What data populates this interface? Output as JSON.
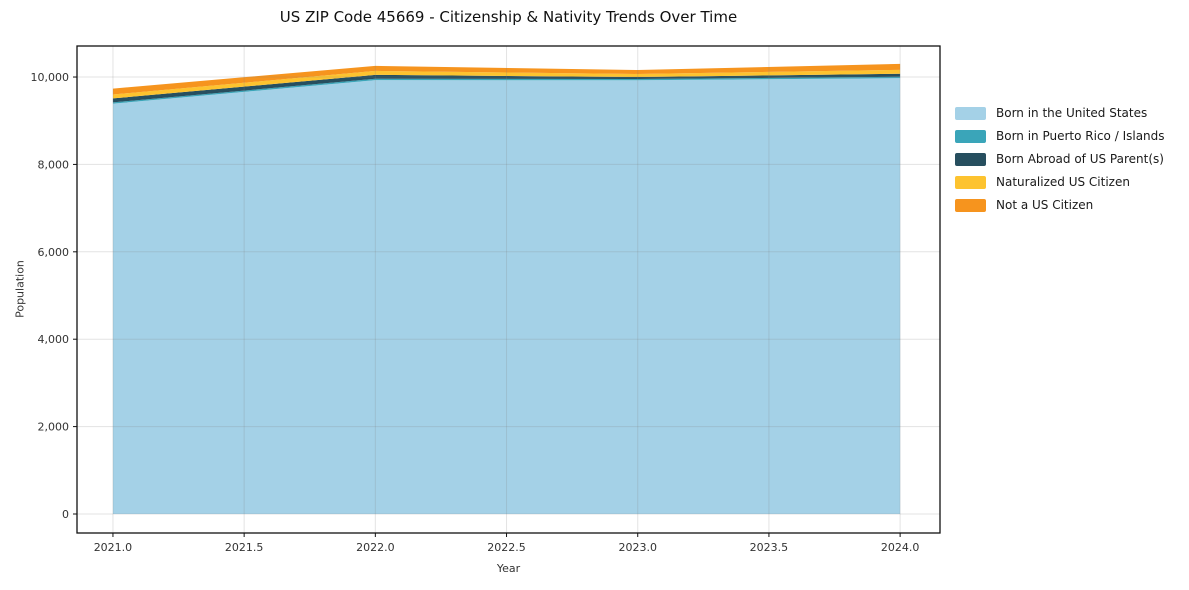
{
  "chart_data": {
    "type": "area",
    "stacked": true,
    "title": "US ZIP Code 45669 - Citizenship & Nativity Trends Over Time",
    "xlabel": "Year",
    "ylabel": "Population",
    "x": [
      2021,
      2022,
      2023,
      2024
    ],
    "series": [
      {
        "name": "Born in the United States",
        "color": "#a4d1e7",
        "values": [
          9390,
          9930,
          9925,
          9975
        ]
      },
      {
        "name": "Born in Puerto Rico / Islands",
        "color": "#3aa5b9",
        "values": [
          30,
          30,
          30,
          30
        ]
      },
      {
        "name": "Born Abroad of US Parent(s)",
        "color": "#274f5f",
        "values": [
          90,
          90,
          45,
          70
        ]
      },
      {
        "name": "Naturalized US Citizen",
        "color": "#fdc32f",
        "values": [
          90,
          90,
          70,
          90
        ]
      },
      {
        "name": "Not a US Citizen",
        "color": "#f6941e",
        "values": [
          135,
          115,
          90,
          135
        ]
      }
    ],
    "totals": [
      9735,
      10255,
      10160,
      10300
    ],
    "x_ticks": [
      {
        "value": 2021.0,
        "label": "2021.0"
      },
      {
        "value": 2021.5,
        "label": "2021.5"
      },
      {
        "value": 2022.0,
        "label": "2022.0"
      },
      {
        "value": 2022.5,
        "label": "2022.5"
      },
      {
        "value": 2023.0,
        "label": "2023.0"
      },
      {
        "value": 2023.5,
        "label": "2023.5"
      },
      {
        "value": 2024.0,
        "label": "2024.0"
      }
    ],
    "y_ticks": [
      {
        "value": 0,
        "label": "0"
      },
      {
        "value": 2000,
        "label": "2,000"
      },
      {
        "value": 4000,
        "label": "4,000"
      },
      {
        "value": 6000,
        "label": "6,000"
      },
      {
        "value": 8000,
        "label": "8,000"
      },
      {
        "value": 10000,
        "label": "10,000"
      }
    ],
    "xlim": [
      2020.863,
      2024.152
    ],
    "ylim": [
      -435,
      10710
    ],
    "grid": true,
    "legend_position": "right"
  }
}
